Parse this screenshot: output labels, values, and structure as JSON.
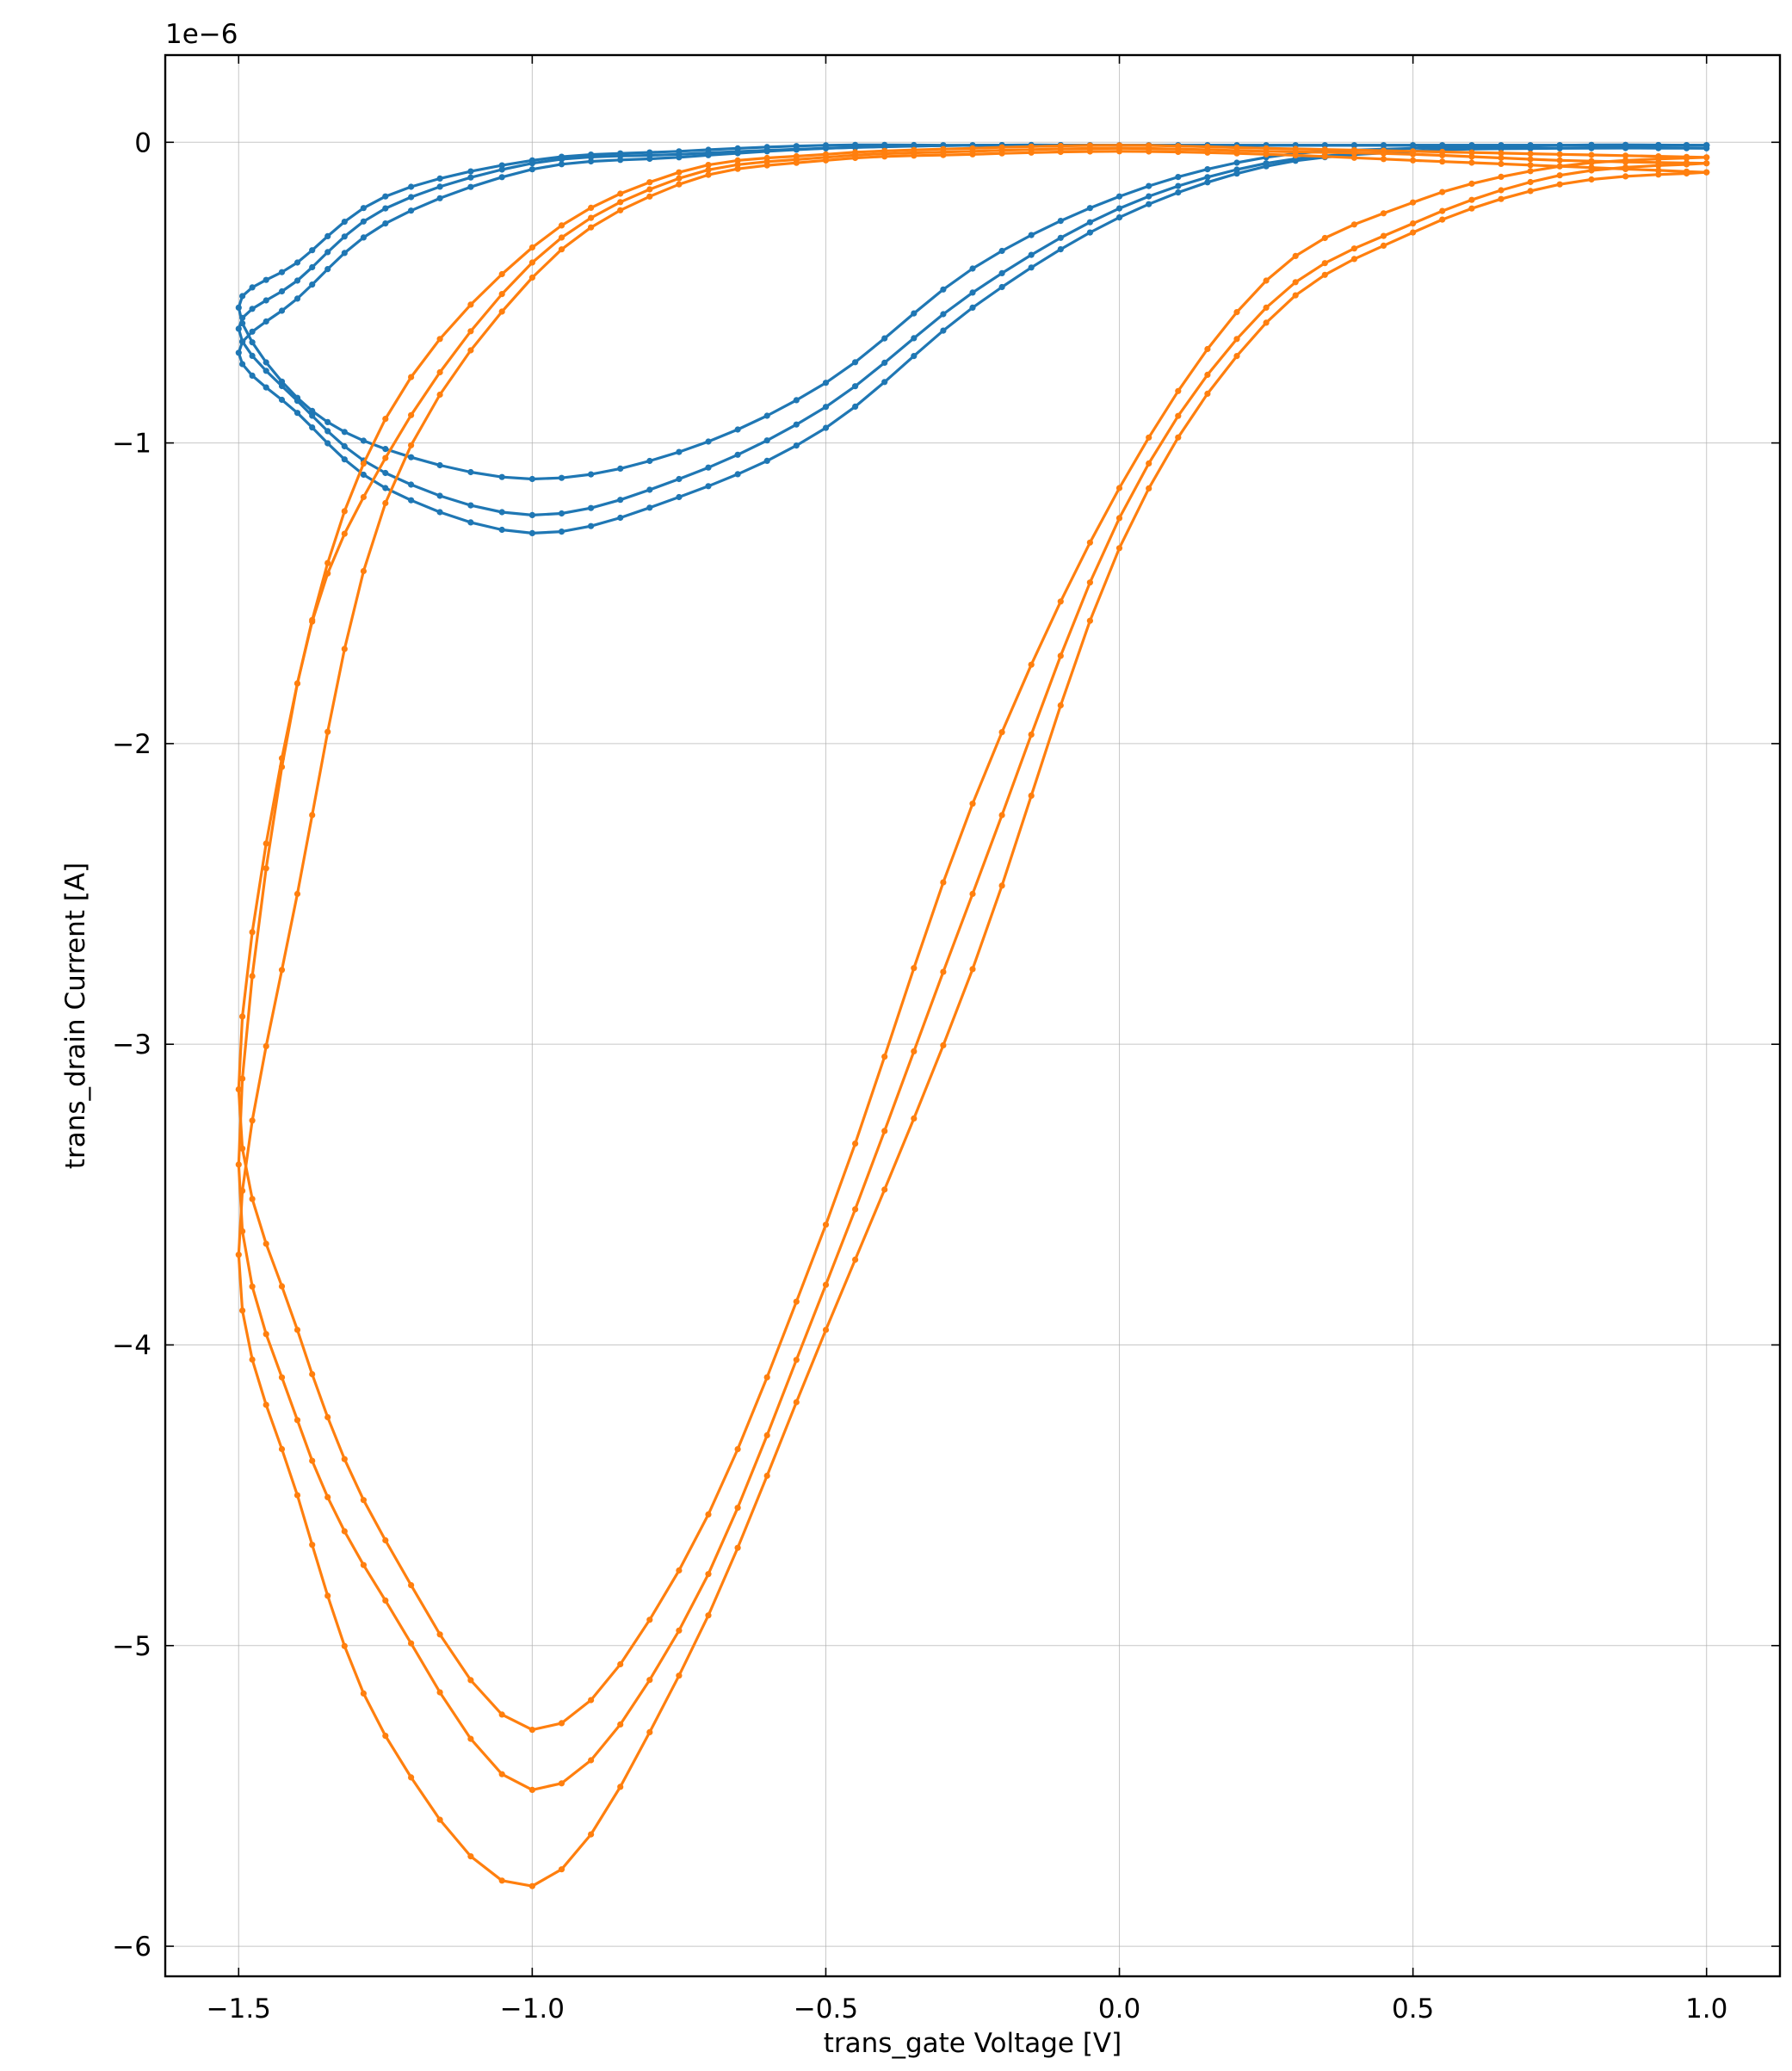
{
  "chart_data": {
    "type": "line",
    "xlabel": "trans_gate Voltage [V]",
    "ylabel": "trans_drain Current [A]",
    "y_offset_text": "1e−6",
    "y_scale": 1e-06,
    "xlim": [
      -1.625,
      1.125
    ],
    "ylim": [
      -6.1,
      0.29
    ],
    "x_ticks": [
      {
        "value": -1.5,
        "label": "−1.5"
      },
      {
        "value": -1.0,
        "label": "−1.0"
      },
      {
        "value": -0.5,
        "label": "−0.5"
      },
      {
        "value": 0.0,
        "label": "0.0"
      },
      {
        "value": 0.5,
        "label": "0.5"
      },
      {
        "value": 1.0,
        "label": "1.0"
      }
    ],
    "y_ticks": [
      {
        "value": 0,
        "label": "0"
      },
      {
        "value": -1,
        "label": "−1"
      },
      {
        "value": -2,
        "label": "−2"
      },
      {
        "value": -3,
        "label": "−3"
      },
      {
        "value": -4,
        "label": "−4"
      },
      {
        "value": -5,
        "label": "−5"
      },
      {
        "value": -6,
        "label": "−6"
      }
    ],
    "grid": true,
    "series": [
      {
        "color": "#1f77b4",
        "x": [
          1.0,
          0.75,
          0.5,
          0.25,
          0.0,
          -0.25,
          -0.5,
          -0.75,
          -1.0,
          -1.25,
          -1.4,
          -1.5,
          -1.4,
          -1.25,
          -1.0,
          -0.75,
          -0.5,
          -0.25,
          0.0,
          0.25,
          0.5,
          0.75,
          1.0
        ],
        "y": [
          -0.01,
          -0.01,
          -0.01,
          -0.01,
          -0.01,
          -0.01,
          -0.01,
          -0.03,
          -0.06,
          -0.18,
          -0.4,
          -0.55,
          -0.85,
          -1.02,
          -1.12,
          -1.03,
          -0.8,
          -0.42,
          -0.18,
          -0.05,
          -0.02,
          -0.01,
          -0.01
        ]
      },
      {
        "color": "#1f77b4",
        "x": [
          1.0,
          0.75,
          0.5,
          0.25,
          0.0,
          -0.25,
          -0.5,
          -0.75,
          -1.0,
          -1.25,
          -1.4,
          -1.5,
          -1.4,
          -1.25,
          -1.0,
          -0.75,
          -0.5,
          -0.25,
          0.0,
          0.25,
          0.5,
          0.75,
          1.0
        ],
        "y": [
          -0.01,
          -0.01,
          -0.01,
          -0.01,
          -0.01,
          -0.01,
          -0.02,
          -0.04,
          -0.07,
          -0.22,
          -0.46,
          -0.62,
          -0.86,
          -1.1,
          -1.24,
          -1.12,
          -0.88,
          -0.5,
          -0.22,
          -0.07,
          -0.03,
          -0.01,
          -0.01
        ]
      },
      {
        "color": "#1f77b4",
        "x": [
          1.0,
          0.75,
          0.5,
          0.25,
          0.0,
          -0.25,
          -0.5,
          -0.75,
          -1.0,
          -1.25,
          -1.4,
          -1.5,
          -1.4,
          -1.25,
          -1.0,
          -0.75,
          -0.5,
          -0.25,
          0.0,
          0.25,
          0.5,
          0.75,
          1.0
        ],
        "y": [
          -0.01,
          -0.01,
          -0.01,
          -0.01,
          -0.01,
          -0.01,
          -0.02,
          -0.05,
          -0.09,
          -0.27,
          -0.52,
          -0.7,
          -0.9,
          -1.15,
          -1.3,
          -1.18,
          -0.95,
          -0.55,
          -0.25,
          -0.08,
          -0.03,
          -0.02,
          -0.02
        ]
      },
      {
        "color": "#ff7f0e",
        "x": [
          1.0,
          0.75,
          0.5,
          0.25,
          0.0,
          -0.25,
          -0.5,
          -0.75,
          -1.0,
          -1.25,
          -1.4,
          -1.5,
          -1.4,
          -1.25,
          -1.0,
          -0.75,
          -0.5,
          -0.25,
          0.0,
          0.25,
          0.5,
          0.75,
          1.0
        ],
        "y": [
          -0.05,
          -0.08,
          -0.2,
          -0.46,
          -1.15,
          -2.2,
          -3.6,
          -4.75,
          -5.28,
          -4.65,
          -3.95,
          -3.15,
          -1.8,
          -0.92,
          -0.35,
          -0.1,
          -0.04,
          -0.02,
          -0.01,
          -0.02,
          -0.03,
          -0.04,
          -0.05
        ]
      },
      {
        "color": "#ff7f0e",
        "x": [
          1.0,
          0.75,
          0.5,
          0.25,
          0.0,
          -0.25,
          -0.5,
          -0.75,
          -1.0,
          -1.25,
          -1.4,
          -1.5,
          -1.4,
          -1.25,
          -1.0,
          -0.75,
          -0.5,
          -0.25,
          0.0,
          0.25,
          0.5,
          0.75,
          1.0
        ],
        "y": [
          -0.07,
          -0.11,
          -0.27,
          -0.55,
          -1.25,
          -2.5,
          -3.8,
          -4.95,
          -5.48,
          -4.85,
          -4.25,
          -3.4,
          -1.8,
          -1.05,
          -0.4,
          -0.12,
          -0.05,
          -0.03,
          -0.02,
          -0.03,
          -0.04,
          -0.06,
          -0.07
        ]
      },
      {
        "color": "#ff7f0e",
        "x": [
          1.0,
          0.75,
          0.5,
          0.25,
          0.0,
          -0.25,
          -0.5,
          -0.75,
          -1.0,
          -1.25,
          -1.4,
          -1.5,
          -1.4,
          -1.25,
          -1.0,
          -0.75,
          -0.5,
          -0.25,
          0.0,
          0.25,
          0.5,
          0.75,
          1.0
        ],
        "y": [
          -0.1,
          -0.14,
          -0.3,
          -0.6,
          -1.35,
          -2.75,
          -3.95,
          -5.1,
          -5.8,
          -5.3,
          -4.5,
          -3.7,
          -2.5,
          -1.2,
          -0.45,
          -0.14,
          -0.06,
          -0.04,
          -0.03,
          -0.04,
          -0.06,
          -0.08,
          -0.1
        ]
      }
    ]
  }
}
